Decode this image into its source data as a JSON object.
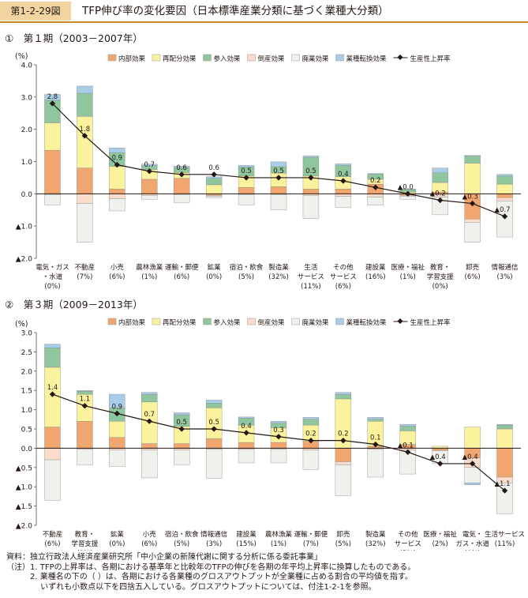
{
  "header": {
    "figure_no": "第1-2-29図",
    "title": "TFP伸び率の変化要因（日本標準産業分類に基づく業種大分類）"
  },
  "legend_labels": [
    "内部効果",
    "再配分効果",
    "参入効果",
    "倒産効果",
    "廃業効果",
    "業種転換効果",
    "生産性上昇率"
  ],
  "colors": {
    "internal": "#f2a66f",
    "realloc": "#fbf29e",
    "entry": "#8fc69e",
    "bankrupt": "#fbdcca",
    "exit": "#eef1ec",
    "switch": "#a9cde9",
    "line": "#231815",
    "accent": "#c8892e"
  },
  "chart_data": [
    {
      "type": "bar",
      "stacked": true,
      "section_title": "①　第１期（2003－2007年）",
      "unit": "(%)",
      "ylim": [
        -2.0,
        4.0
      ],
      "ticks": [
        "▲2.0",
        "▲1.0",
        "0.0",
        "1.0",
        "2.0",
        "3.0",
        "4.0"
      ],
      "categories": [
        [
          "電気・ガス",
          "・水道",
          "(0%)"
        ],
        [
          "不動産",
          "(7%)"
        ],
        [
          "小売",
          "(6%)"
        ],
        [
          "農林漁業",
          "(1%)"
        ],
        [
          "運輸・郵便",
          "(6%)"
        ],
        [
          "鉱業",
          "(0%)"
        ],
        [
          "宿泊・飲食",
          "(5%)"
        ],
        [
          "製造業",
          "(32%)"
        ],
        [
          "生活",
          "サービス",
          "(11%)"
        ],
        [
          "その他",
          "サービス",
          "(6%)"
        ],
        [
          "建設業",
          "(16%)"
        ],
        [
          "医療・福祉",
          "(1%)"
        ],
        [
          "教育・",
          "学習支援",
          "(0%)"
        ],
        [
          "卸売",
          "(6%)"
        ],
        [
          "情報通信",
          "(3%)"
        ]
      ],
      "series": [
        {
          "name": "内部効果",
          "values": [
            1.35,
            0.8,
            0.15,
            0.45,
            0.48,
            -0.05,
            0.2,
            0.22,
            0.15,
            0.15,
            0.3,
            -0.05,
            0.05,
            -0.78,
            -0.12
          ]
        },
        {
          "name": "再配分効果",
          "values": [
            0.85,
            1.6,
            0.7,
            0.3,
            0.18,
            0.28,
            0.35,
            0.42,
            0.4,
            0.38,
            0.15,
            0.05,
            0.3,
            0.95,
            0.3
          ]
        },
        {
          "name": "参入効果",
          "values": [
            0.7,
            0.72,
            0.42,
            0.12,
            0.15,
            0.2,
            0.28,
            0.2,
            0.58,
            0.35,
            0.16,
            0.08,
            0.3,
            0.22,
            0.25
          ]
        },
        {
          "name": "倒産効果",
          "values": [
            -0.02,
            -0.3,
            -0.15,
            -0.05,
            -0.02,
            -0.02,
            -0.02,
            -0.02,
            -0.05,
            -0.08,
            -0.1,
            -0.02,
            -0.1,
            -0.1,
            -0.1
          ]
        },
        {
          "name": "廃業効果",
          "values": [
            -0.32,
            -1.2,
            -0.38,
            -0.12,
            -0.25,
            -0.05,
            -0.32,
            -0.48,
            -0.72,
            -0.35,
            -0.25,
            -0.1,
            -0.55,
            -0.62,
            -1.12
          ]
        },
        {
          "name": "業種転換効果",
          "values": [
            0.18,
            0.22,
            0.15,
            0.05,
            0.05,
            0.05,
            0.05,
            0.15,
            0.05,
            0.05,
            0.02,
            0.02,
            0.15,
            0.02,
            0.05
          ]
        }
      ],
      "line": {
        "name": "生産性上昇率",
        "values": [
          2.8,
          1.8,
          0.9,
          0.7,
          0.6,
          0.6,
          0.5,
          0.5,
          0.5,
          0.4,
          0.2,
          0.0,
          -0.2,
          -0.3,
          -0.7
        ],
        "labels": [
          "2.8",
          "1.8",
          "0.9",
          "0.7",
          "0.6",
          "0.6",
          "0.5",
          "0.5",
          "0.5",
          "0.4",
          "0.2",
          "▲0.0",
          "▲0.2",
          "▲0.3",
          "▲0.7"
        ]
      }
    },
    {
      "type": "bar",
      "stacked": true,
      "section_title": "②　第３期（2009－2013年）",
      "unit": "(%)",
      "ylim": [
        -2.0,
        3.0
      ],
      "ticks": [
        "▲2.0",
        "▲1.5",
        "▲1.0",
        "▲0.5",
        "0.0",
        "0.5",
        "1.0",
        "1.5",
        "2.0",
        "2.5",
        "3.0"
      ],
      "categories": [
        [
          "不動産",
          "(6%)"
        ],
        [
          "教育・",
          "学習支援",
          "(1%)"
        ],
        [
          "鉱業",
          "(0%)"
        ],
        [
          "小売",
          "(6%)"
        ],
        [
          "宿泊・飲食",
          "(5%)"
        ],
        [
          "情報通信",
          "(3%)"
        ],
        [
          "建設業",
          "(15%)"
        ],
        [
          "農林漁業",
          "(1%)"
        ],
        [
          "運輸・郵便",
          "(7%)"
        ],
        [
          "卸売",
          "(5%)"
        ],
        [
          "製造業",
          "(32%)"
        ],
        [
          "その他",
          "サービス",
          "(5%)"
        ],
        [
          "医療・福祉",
          "(2%)"
        ],
        [
          "電気・",
          "ガス・水道",
          "(0%)"
        ],
        [
          "生活サービス",
          "(11%)"
        ]
      ],
      "series": [
        {
          "name": "内部効果",
          "values": [
            0.55,
            0.7,
            0.28,
            0.12,
            0.12,
            0.25,
            0.15,
            0.15,
            0.18,
            -0.35,
            0.05,
            0.1,
            -0.05,
            -0.25,
            -0.75
          ]
        },
        {
          "name": "再配分効果",
          "values": [
            1.55,
            0.7,
            0.42,
            1.08,
            0.45,
            0.8,
            0.45,
            0.38,
            0.42,
            1.28,
            0.65,
            0.35,
            0.05,
            0.55,
            0.5
          ]
        },
        {
          "name": "参入効果",
          "values": [
            0.5,
            0.08,
            0.35,
            0.2,
            0.3,
            0.12,
            0.18,
            0.12,
            0.15,
            0.12,
            0.05,
            0.12,
            0.0,
            0.0,
            0.1
          ]
        },
        {
          "name": "倒産効果",
          "values": [
            -0.3,
            -0.03,
            -0.05,
            -0.05,
            -0.05,
            -0.03,
            -0.03,
            -0.03,
            -0.05,
            -0.08,
            -0.03,
            -0.05,
            -0.02,
            -0.25,
            -0.15
          ]
        },
        {
          "name": "廃業効果",
          "values": [
            -1.05,
            -0.4,
            -0.42,
            -0.72,
            -0.38,
            -0.75,
            -0.35,
            -0.35,
            -0.5,
            -0.8,
            -0.72,
            -0.62,
            -0.33,
            -0.4,
            -0.8
          ]
        },
        {
          "name": "業種転換効果",
          "values": [
            0.1,
            0.02,
            0.35,
            0.05,
            0.05,
            0.08,
            0.03,
            0.05,
            0.05,
            0.05,
            0.05,
            0.05,
            0.0,
            -0.05,
            0.02
          ]
        }
      ],
      "line": {
        "name": "生産性上昇率",
        "values": [
          1.4,
          1.1,
          0.9,
          0.7,
          0.5,
          0.5,
          0.4,
          0.3,
          0.2,
          0.2,
          0.1,
          -0.1,
          -0.4,
          -0.4,
          -1.1
        ],
        "labels": [
          "1.4",
          "1.1",
          "0.9",
          "0.7",
          "0.5",
          "0.5",
          "0.4",
          "0.3",
          "0.2",
          "0.2",
          "0.1",
          "▲0.1",
          "▲0.4",
          "▲0.4",
          "▲1.1"
        ]
      }
    }
  ],
  "notes": [
    "資料：独立行政法人経済産業研究所「中小企業の新陳代謝に関する分析に係る委託事業」",
    "（注）1. TFPの上昇率は、各期における基準年と比較年のTFPの伸びを各期の年平均上昇率に換算したものである。",
    "　　　2. 業種名の下の（ ）は、各期における各業種のグロスアウトプットが全業種に占める割合の平均値を指す。",
    "　　　　 いずれも小数点以下を四捨五入している。グロスアウトプットについては、付注1-2-1を参照。"
  ]
}
